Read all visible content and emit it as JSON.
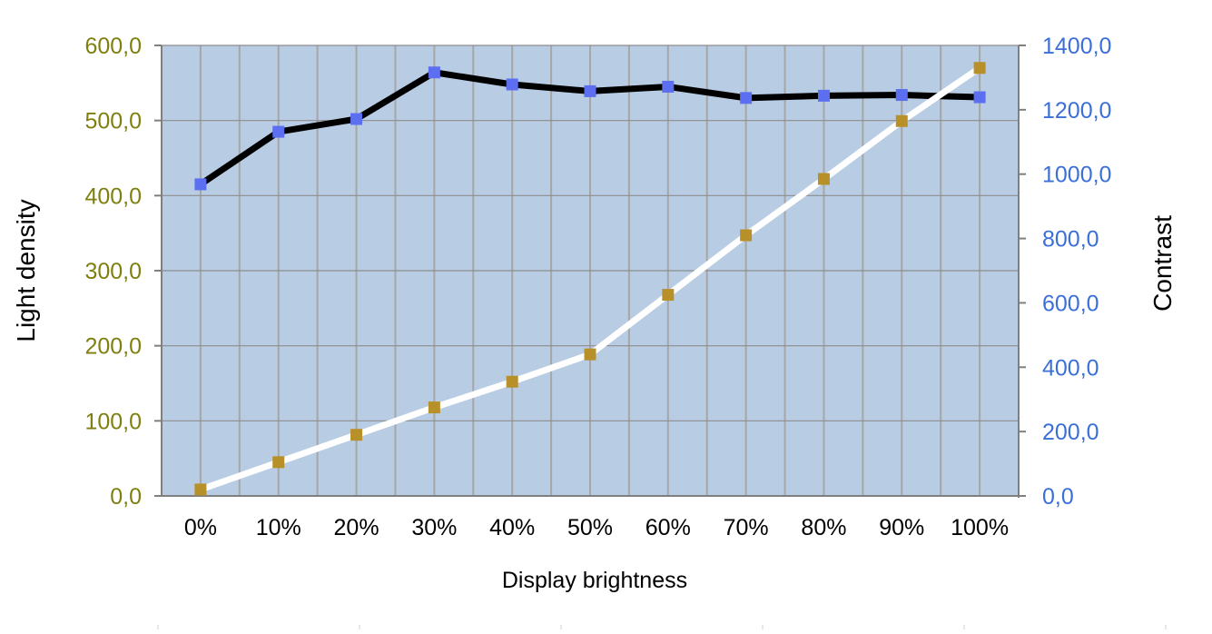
{
  "chart_data": {
    "type": "line",
    "xlabel": "Display brightness",
    "ylabel_left": "Light density",
    "ylabel_right": "Contrast",
    "categories": [
      "0%",
      "10%",
      "20%",
      "30%",
      "40%",
      "50%",
      "60%",
      "70%",
      "80%",
      "90%",
      "100%"
    ],
    "y_left": {
      "ylim": [
        0,
        600
      ],
      "ticks": [
        0,
        100,
        200,
        300,
        400,
        500,
        600
      ],
      "tick_labels": [
        "0,0",
        "100,0",
        "200,0",
        "300,0",
        "400,0",
        "500,0",
        "600,0"
      ],
      "color": "#7f7f0f"
    },
    "y_right": {
      "ylim": [
        0,
        1400
      ],
      "ticks": [
        0,
        200,
        400,
        600,
        800,
        1000,
        1200,
        1400
      ],
      "tick_labels": [
        "0,0",
        "200,0",
        "400,0",
        "600,0",
        "800,0",
        "1000,0",
        "1200,0",
        "1400,0"
      ],
      "color": "#3b6fd8"
    },
    "series": [
      {
        "axis": "left",
        "line_color": "#000000",
        "marker_color": "#5b6ff0",
        "values": [
          415,
          485,
          502,
          564,
          548,
          539,
          545,
          530,
          533,
          534,
          531
        ]
      },
      {
        "axis": "right",
        "line_color": "#ffffff",
        "marker_color": "#b8902a",
        "values": [
          20,
          105,
          190,
          275,
          355,
          440,
          625,
          810,
          985,
          1165,
          1330
        ]
      }
    ],
    "grid": true,
    "plot_background": "#b8cce4",
    "grid_color": "#a6a6a6"
  }
}
